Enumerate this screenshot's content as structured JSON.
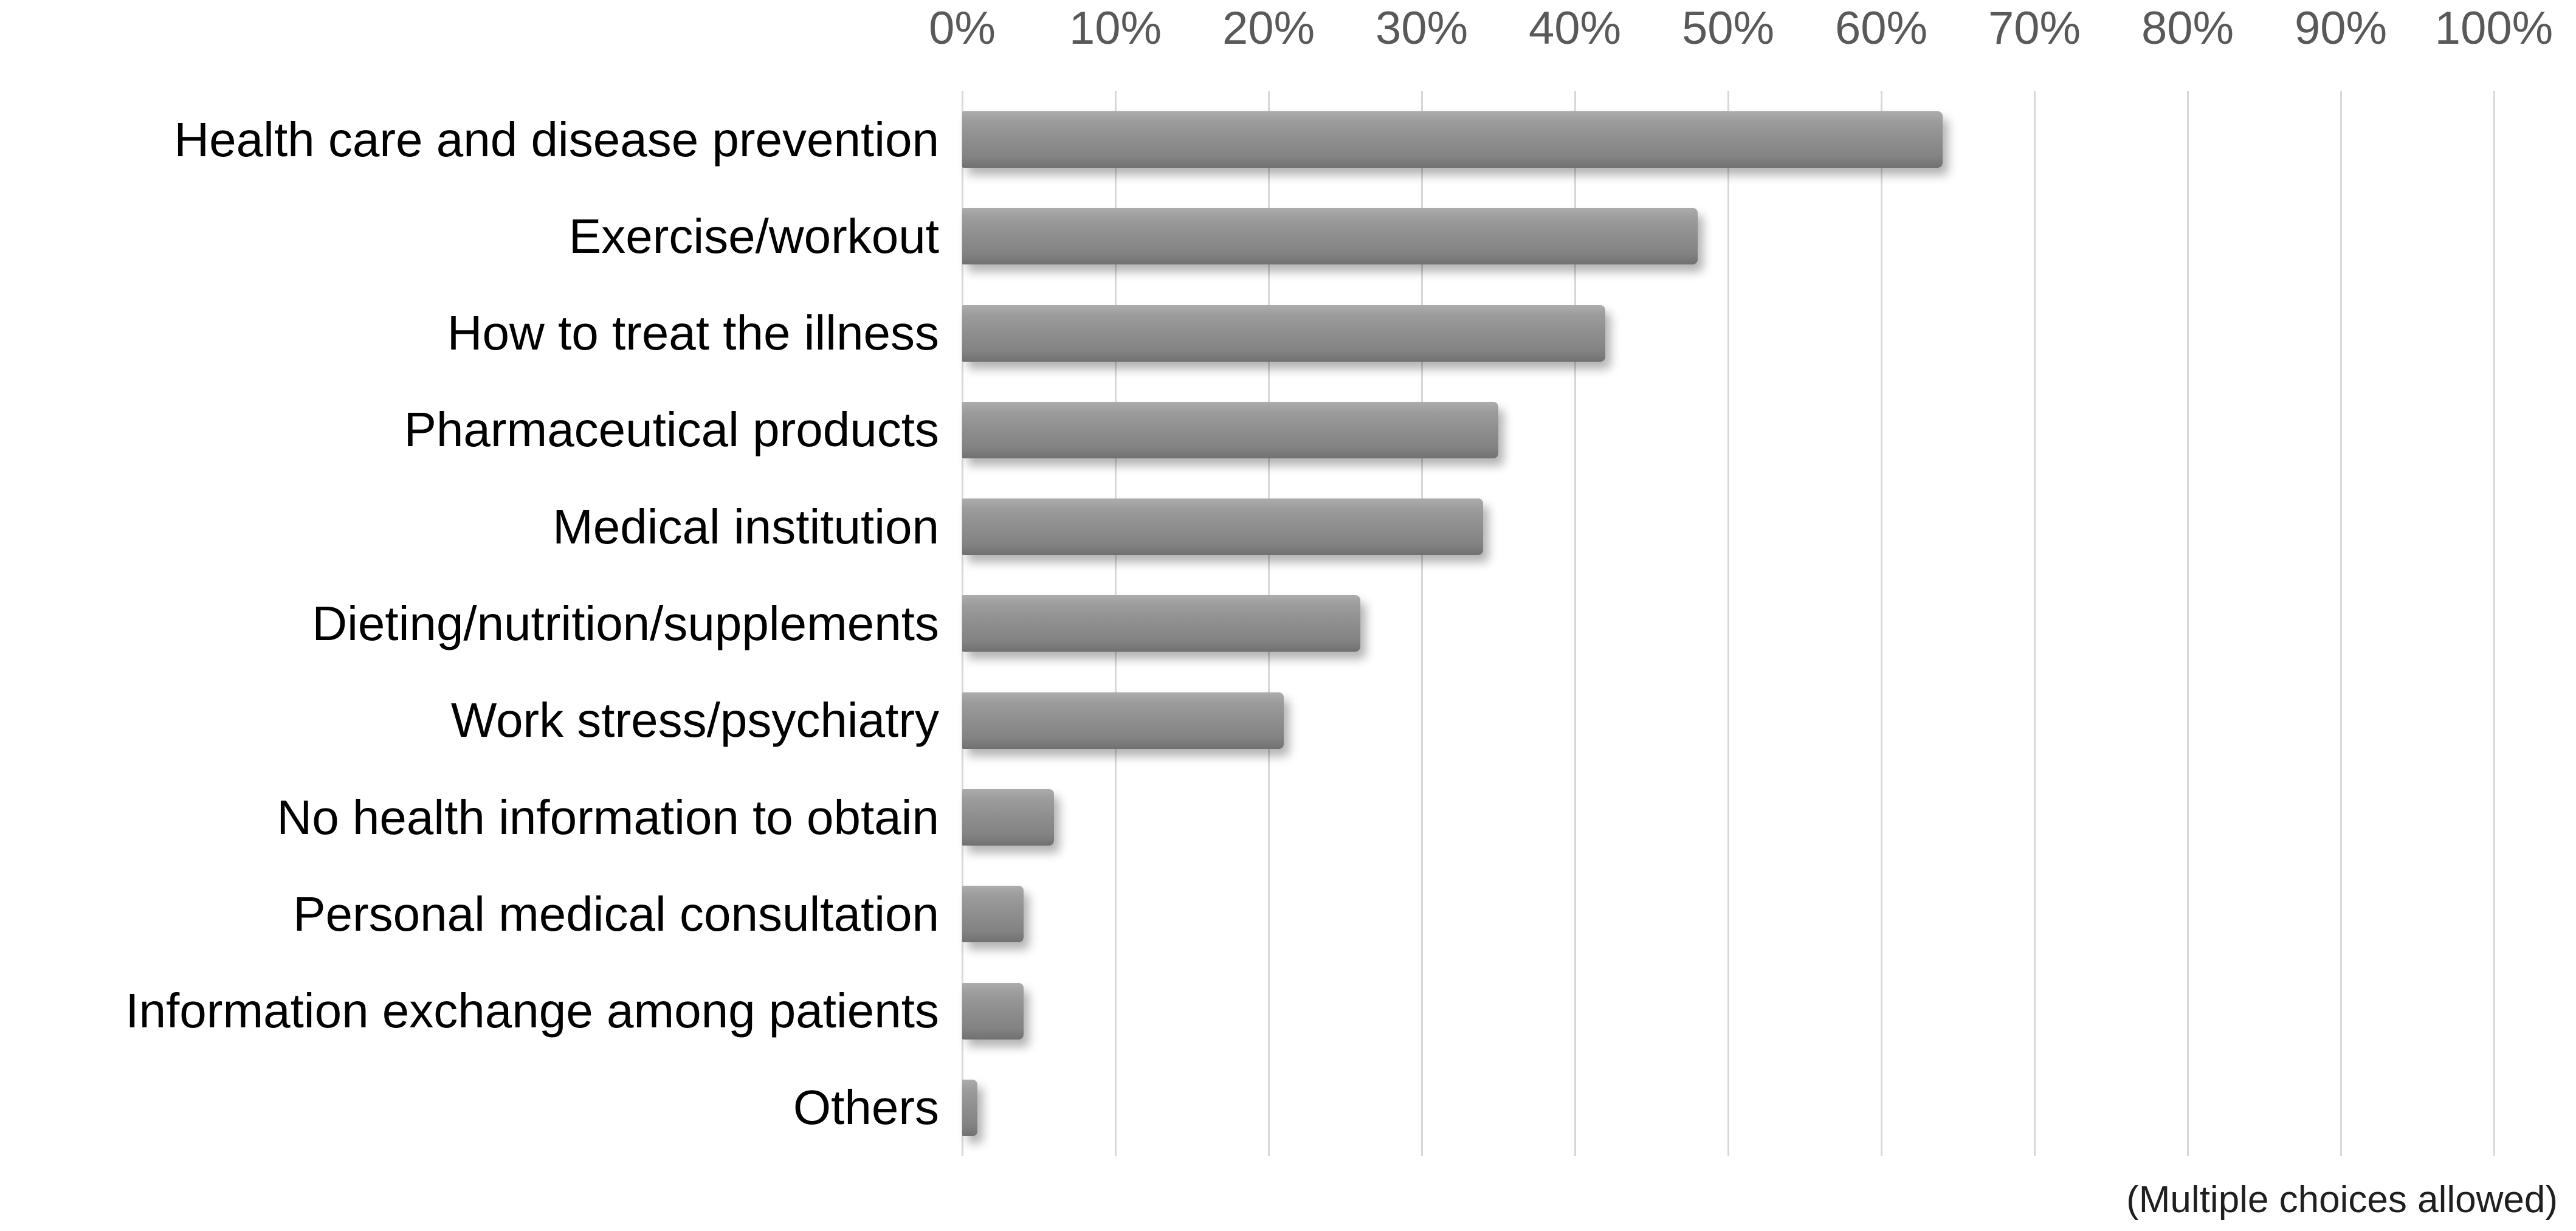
{
  "chart_data": {
    "type": "bar",
    "orientation": "horizontal",
    "title": "",
    "xlabel": "",
    "ylabel": "",
    "xlim": [
      0,
      100
    ],
    "x_ticks": [
      "0%",
      "10%",
      "20%",
      "30%",
      "40%",
      "50%",
      "60%",
      "70%",
      "80%",
      "90%",
      "100%"
    ],
    "grid": "vertical-only",
    "legend": "none",
    "categories": [
      "Health care and disease prevention",
      "Exercise/workout",
      "How to treat the illness",
      "Pharmaceutical products",
      "Medical institution",
      "Dieting/nutrition/supplements",
      "Work stress/psychiatry",
      "No health information to obtain",
      "Personal medical consultation",
      "Information exchange among patients",
      "Others"
    ],
    "values": [
      64,
      48,
      42,
      35,
      34,
      26,
      21,
      6,
      4,
      4,
      1
    ],
    "unit": "%",
    "footnote": "(Multiple choices allowed)",
    "colors": {
      "bar": "#8e8e8e",
      "gridline": "#d8d8d8",
      "tick_label": "#595959",
      "category_label": "#000000",
      "background": "#ffffff"
    }
  }
}
